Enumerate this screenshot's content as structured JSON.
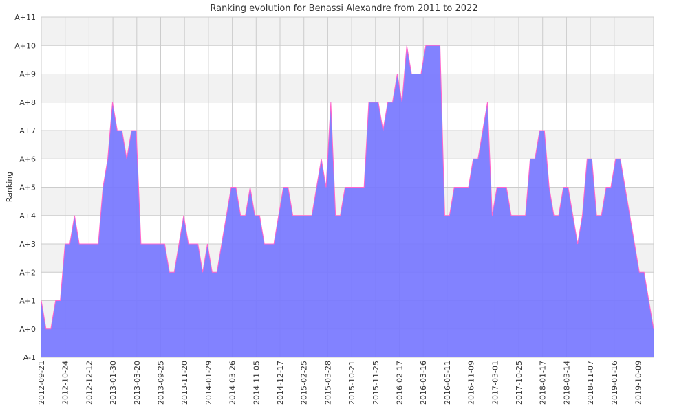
{
  "chart_data": {
    "type": "area",
    "title": "Ranking evolution for Benassi Alexandre from 2011 to 2022",
    "xlabel": "",
    "ylabel": "Ranking",
    "ylim": [
      -1,
      11
    ],
    "y_ticks": [
      "A-1",
      "A+0",
      "A+1",
      "A+2",
      "A+3",
      "A+4",
      "A+5",
      "A+6",
      "A+7",
      "A+8",
      "A+9",
      "A+10",
      "A+11"
    ],
    "x_ticks": [
      "2012-09-21",
      "2012-10-24",
      "2012-12-12",
      "2013-01-30",
      "2013-03-20",
      "2013-09-25",
      "2013-11-20",
      "2014-01-29",
      "2014-03-26",
      "2014-11-05",
      "2014-12-17",
      "2015-02-25",
      "2015-03-28",
      "2015-10-21",
      "2015-11-25",
      "2016-02-17",
      "2016-03-16",
      "2016-05-11",
      "2016-11-09",
      "2017-03-01",
      "2017-10-25",
      "2018-01-17",
      "2018-03-14",
      "2018-11-07",
      "2019-01-16",
      "2019-10-09"
    ],
    "grid": true,
    "colors": {
      "fill": "#7777ff",
      "line": "#ff66cc",
      "grid": "#cccccc",
      "band": "#f2f2f2"
    },
    "series": [
      {
        "values": [
          1,
          0,
          0,
          1,
          1,
          3,
          3,
          4,
          3,
          3,
          3,
          3,
          3,
          5,
          6,
          8,
          7,
          7,
          6,
          7,
          7,
          3,
          3,
          3,
          3,
          3,
          3,
          2,
          2,
          3,
          4,
          3,
          3,
          3,
          2,
          3,
          2,
          2,
          3,
          4,
          5,
          5,
          4,
          4,
          5,
          4,
          4,
          3,
          3,
          3,
          4,
          5,
          5,
          4,
          4,
          4,
          4,
          4,
          5,
          6,
          5,
          8,
          4,
          4,
          5,
          5,
          5,
          5,
          5,
          8,
          8,
          8,
          7,
          8,
          8,
          9,
          8,
          10,
          9,
          9,
          9,
          10,
          10,
          10,
          10,
          4,
          4,
          5,
          5,
          5,
          5,
          6,
          6,
          7,
          8,
          4,
          5,
          5,
          5,
          4,
          4,
          4,
          4,
          6,
          6,
          7,
          7,
          5,
          4,
          4,
          5,
          5,
          4,
          3,
          4,
          6,
          6,
          4,
          4,
          5,
          5,
          6,
          6,
          5,
          4,
          3,
          2,
          2,
          1,
          0
        ]
      }
    ]
  }
}
